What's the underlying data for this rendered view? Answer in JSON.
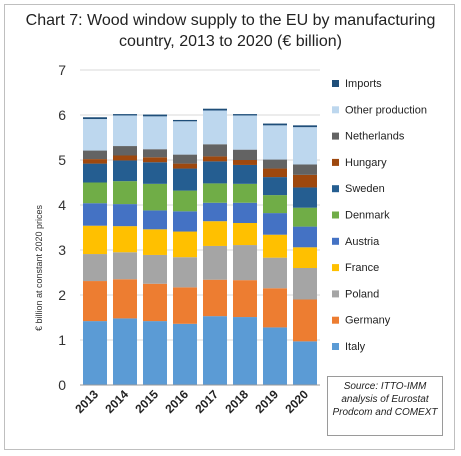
{
  "chart_data": {
    "type": "bar",
    "stacked": true,
    "title": "Chart 7: Wood window supply to the EU by manufacturing country, 2013 to 2020 (€ billion)",
    "ylabel": "€ billion at constant 2020 prices",
    "xlabel": "",
    "ylim": [
      0,
      7
    ],
    "yticks": [
      "0",
      "1",
      "2",
      "3",
      "4",
      "5",
      "6",
      "7"
    ],
    "grid": true,
    "legend_position": "right",
    "categories": [
      "2013",
      "2014",
      "2015",
      "2016",
      "2017",
      "2018",
      "2019",
      "2020"
    ],
    "series": [
      {
        "name": "Italy",
        "color": "#5b9bd5",
        "values": [
          1.42,
          1.48,
          1.42,
          1.36,
          1.53,
          1.51,
          1.28,
          0.97
        ]
      },
      {
        "name": "Germany",
        "color": "#ed7d31",
        "values": [
          0.89,
          0.87,
          0.83,
          0.81,
          0.81,
          0.82,
          0.87,
          0.93
        ]
      },
      {
        "name": "Poland",
        "color": "#a5a5a5",
        "values": [
          0.6,
          0.6,
          0.64,
          0.67,
          0.75,
          0.78,
          0.68,
          0.7
        ]
      },
      {
        "name": "France",
        "color": "#ffc000",
        "values": [
          0.63,
          0.58,
          0.57,
          0.57,
          0.55,
          0.49,
          0.51,
          0.46
        ]
      },
      {
        "name": "Austria",
        "color": "#4472c4",
        "values": [
          0.5,
          0.49,
          0.42,
          0.45,
          0.41,
          0.45,
          0.48,
          0.46
        ]
      },
      {
        "name": "Denmark",
        "color": "#70ad47",
        "values": [
          0.46,
          0.51,
          0.59,
          0.46,
          0.43,
          0.42,
          0.4,
          0.42
        ]
      },
      {
        "name": "Sweden",
        "color": "#255e91",
        "values": [
          0.42,
          0.46,
          0.48,
          0.49,
          0.49,
          0.42,
          0.4,
          0.45
        ]
      },
      {
        "name": "Hungary",
        "color": "#9e480e",
        "values": [
          0.1,
          0.11,
          0.11,
          0.11,
          0.11,
          0.11,
          0.19,
          0.28
        ]
      },
      {
        "name": "Netherlands",
        "color": "#636363",
        "values": [
          0.19,
          0.21,
          0.18,
          0.2,
          0.27,
          0.23,
          0.2,
          0.23
        ]
      },
      {
        "name": "Other production",
        "color": "#bdd7ee",
        "values": [
          0.7,
          0.68,
          0.73,
          0.74,
          0.75,
          0.76,
          0.76,
          0.83
        ]
      },
      {
        "name": "Imports",
        "color": "#1f4e79",
        "values": [
          0.04,
          0.03,
          0.04,
          0.03,
          0.04,
          0.03,
          0.04,
          0.04
        ]
      }
    ],
    "source": "Source: ITTO-IMM analysis of Eurostat Prodcom and COMEXT"
  }
}
